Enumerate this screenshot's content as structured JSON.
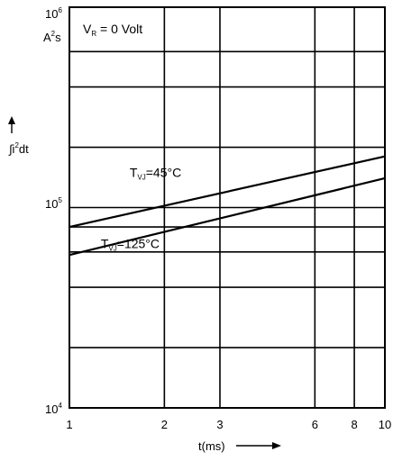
{
  "chart_data": {
    "type": "line",
    "x_scale": "log",
    "y_scale": "log",
    "xlim": [
      1,
      10
    ],
    "ylim": [
      10000,
      1000000
    ],
    "grid": true,
    "y_top_label": {
      "base": "10",
      "exp": "6"
    },
    "y_bottom_label": {
      "base": "10",
      "exp": "4"
    },
    "y_mid_label": {
      "base": "10",
      "exp": "5"
    },
    "y_unit": {
      "a": "A",
      "exp": "2",
      "s": "s"
    },
    "y_axis_label": {
      "prefix": "∫i",
      "exp": "2",
      "suffix": "dt"
    },
    "x_axis_label": "t(ms)",
    "x_ticks": [
      {
        "value": 1,
        "label": "1"
      },
      {
        "value": 2,
        "label": "2"
      },
      {
        "value": 3,
        "label": "3"
      },
      {
        "value": 6,
        "label": "6"
      },
      {
        "value": 8,
        "label": "8"
      },
      {
        "value": 10,
        "label": "10"
      }
    ],
    "x_gridlines": [
      1,
      2,
      3,
      6,
      8,
      10
    ],
    "y_gridlines": [
      10000,
      20000,
      40000,
      60000,
      80000,
      100000,
      200000,
      400000,
      600000,
      1000000
    ],
    "annotation": {
      "v": "V",
      "sub": "R",
      "rest": " = 0 Volt"
    },
    "series": [
      {
        "name": "T_VJ=45°C",
        "label_main": "T",
        "label_sub": "VJ",
        "label_rest": "=45°C",
        "x": [
          1,
          10
        ],
        "y": [
          80000,
          180000
        ],
        "label_x": 2.9,
        "label_y": 150000
      },
      {
        "name": "T_VJ=125°C",
        "label_main": "T",
        "label_sub": "VJ",
        "label_rest": "=125°C",
        "x": [
          1,
          10
        ],
        "y": [
          58000,
          140000
        ],
        "label_x": 2.35,
        "label_y": 66000
      }
    ]
  }
}
